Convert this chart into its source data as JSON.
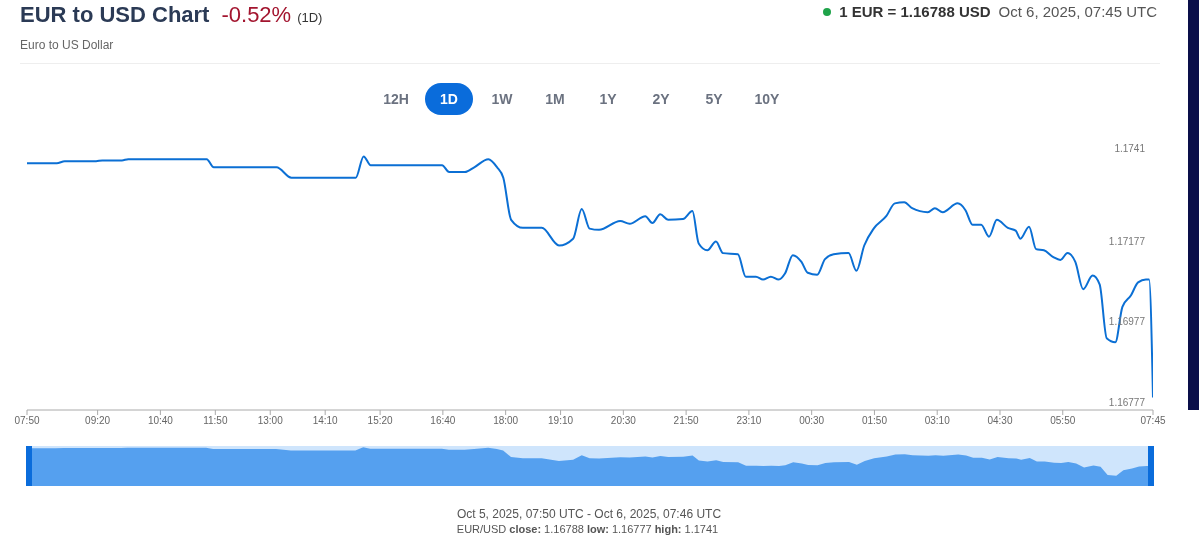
{
  "chart_data": {
    "type": "line",
    "title": "EUR to USD Chart",
    "subtitle": "Euro to US Dollar",
    "annotations": [
      "-0.52%",
      "(1D)",
      "1 EUR = 1.16788 USD",
      "Oct 6, 2025, 07:45 UTC",
      "12H",
      "1D",
      "1W",
      "1M",
      "1Y",
      "2Y",
      "5Y",
      "10Y",
      "Oct 5, 2025, 07:50 UTC - Oct 6, 2025, 07:46 UTC",
      "EUR/USD",
      "close:",
      "1.16788",
      "low:",
      "1.16777",
      "high:",
      "1.1741"
    ],
    "x": [
      "2025-10-05T07:50",
      "2025-10-05T08:28",
      "2025-10-05T08:38",
      "2025-10-05T09:18",
      "2025-10-05T09:26",
      "2025-10-05T09:51",
      "2025-10-05T09:59",
      "2025-10-05T11:39",
      "2025-10-05T11:48",
      "2025-10-05T13:08",
      "2025-10-05T13:27",
      "2025-10-05T14:49",
      "2025-10-05T14:59",
      "2025-10-05T15:08",
      "2025-10-05T16:39",
      "2025-10-05T16:48",
      "2025-10-05T17:08",
      "2025-10-05T17:20",
      "2025-10-05T17:38",
      "2025-10-05T17:49",
      "2025-10-05T17:57",
      "2025-10-05T18:07",
      "2025-10-05T18:22",
      "2025-10-05T18:46",
      "2025-10-05T19:08",
      "2025-10-05T19:26",
      "2025-10-05T19:37",
      "2025-10-05T19:47",
      "2025-10-05T19:59",
      "2025-10-05T20:26",
      "2025-10-05T20:38",
      "2025-10-05T20:58",
      "2025-10-05T21:07",
      "2025-10-05T21:17",
      "2025-10-05T21:27",
      "2025-10-05T21:46",
      "2025-10-05T21:58",
      "2025-10-05T22:06",
      "2025-10-05T22:17",
      "2025-10-05T22:28",
      "2025-10-05T22:37",
      "2025-10-05T22:56",
      "2025-10-05T23:06",
      "2025-10-05T23:19",
      "2025-10-05T23:28",
      "2025-10-05T23:38",
      "2025-10-05T23:48",
      "2025-10-05T23:56",
      "2025-10-06T00:06",
      "2025-10-06T00:17",
      "2025-10-06T00:25",
      "2025-10-06T00:37",
      "2025-10-06T00:47",
      "2025-10-06T00:58",
      "2025-10-06T01:17",
      "2025-10-06T01:27",
      "2025-10-06T01:37",
      "2025-10-06T01:49",
      "2025-10-06T02:05",
      "2025-10-06T02:16",
      "2025-10-06T02:28",
      "2025-10-06T02:38",
      "2025-10-06T02:58",
      "2025-10-06T03:07",
      "2025-10-06T03:17",
      "2025-10-06T03:36",
      "2025-10-06T03:46",
      "2025-10-06T03:55",
      "2025-10-06T04:06",
      "2025-10-06T04:16",
      "2025-10-06T04:26",
      "2025-10-06T04:40",
      "2025-10-06T04:50",
      "2025-10-06T04:56",
      "2025-10-06T05:07",
      "2025-10-06T05:16",
      "2025-10-06T05:26",
      "2025-10-06T05:38",
      "2025-10-06T05:47",
      "2025-10-06T05:56",
      "2025-10-06T06:06",
      "2025-10-06T06:16",
      "2025-10-06T06:28",
      "2025-10-06T06:37",
      "2025-10-06T06:46",
      "2025-10-06T06:57",
      "2025-10-06T07:06",
      "2025-10-06T07:17",
      "2025-10-06T07:26",
      "2025-10-06T07:36",
      "2025-10-06T07:40",
      "2025-10-06T07:45"
    ],
    "series": [
      {
        "color": "#0b6fd4",
        "values": [
          1.17372,
          1.17372,
          1.17377,
          1.17377,
          1.17379,
          1.17379,
          1.17382,
          1.17382,
          1.17362,
          1.17362,
          1.17336,
          1.17336,
          1.17389,
          1.17367,
          1.17367,
          1.1735,
          1.1735,
          1.17362,
          1.17382,
          1.17362,
          1.17336,
          1.17231,
          1.17211,
          1.17211,
          1.17167,
          1.17184,
          1.17258,
          1.17209,
          1.17206,
          1.17228,
          1.17221,
          1.1724,
          1.17223,
          1.17245,
          1.17231,
          1.17233,
          1.17253,
          1.17172,
          1.17155,
          1.17177,
          1.17148,
          1.17145,
          1.17089,
          1.17089,
          1.17082,
          1.17089,
          1.17082,
          1.17097,
          1.17143,
          1.17126,
          1.17099,
          1.17094,
          1.17133,
          1.17145,
          1.17148,
          1.17104,
          1.17167,
          1.17209,
          1.1724,
          1.17272,
          1.17275,
          1.1726,
          1.1725,
          1.1726,
          1.1725,
          1.17272,
          1.17255,
          1.17219,
          1.17219,
          1.17189,
          1.17231,
          1.17211,
          1.17204,
          1.17184,
          1.17214,
          1.17158,
          1.17155,
          1.17138,
          1.17131,
          1.17148,
          1.17126,
          1.17058,
          1.17092,
          1.1707,
          1.16936,
          1.16926,
          1.17014,
          1.17043,
          1.17075,
          1.17082,
          1.17082,
          1.16788
        ]
      }
    ],
    "xlim": [
      "2025-10-05T07:50",
      "2025-10-06T07:45"
    ],
    "xticks": [
      {
        "value": "2025-10-05T07:50",
        "label": "07:50"
      },
      {
        "value": "2025-10-05T09:20",
        "label": "09:20"
      },
      {
        "value": "2025-10-05T10:40",
        "label": "10:40"
      },
      {
        "value": "2025-10-05T11:50",
        "label": "11:50"
      },
      {
        "value": "2025-10-05T13:00",
        "label": "13:00"
      },
      {
        "value": "2025-10-05T14:10",
        "label": "14:10"
      },
      {
        "value": "2025-10-05T15:20",
        "label": "15:20"
      },
      {
        "value": "2025-10-05T16:40",
        "label": "16:40"
      },
      {
        "value": "2025-10-05T18:00",
        "label": "18:00"
      },
      {
        "value": "2025-10-05T19:10",
        "label": "19:10"
      },
      {
        "value": "2025-10-05T20:30",
        "label": "20:30"
      },
      {
        "value": "2025-10-05T21:50",
        "label": "21:50"
      },
      {
        "value": "2025-10-05T23:10",
        "label": "23:10"
      },
      {
        "value": "2025-10-06T00:30",
        "label": "00:30"
      },
      {
        "value": "2025-10-06T01:50",
        "label": "01:50"
      },
      {
        "value": "2025-10-06T03:10",
        "label": "03:10"
      },
      {
        "value": "2025-10-06T04:30",
        "label": "04:30"
      },
      {
        "value": "2025-10-06T05:50",
        "label": "05:50"
      },
      {
        "value": "2025-10-06T07:45",
        "label": "07:45"
      }
    ],
    "ylim": [
      1.16757,
      1.1741
    ],
    "yticks": [
      1.16777,
      1.16977,
      1.17177,
      1.1741
    ],
    "legend": false,
    "marker": "none",
    "line_style": "solid"
  }
}
